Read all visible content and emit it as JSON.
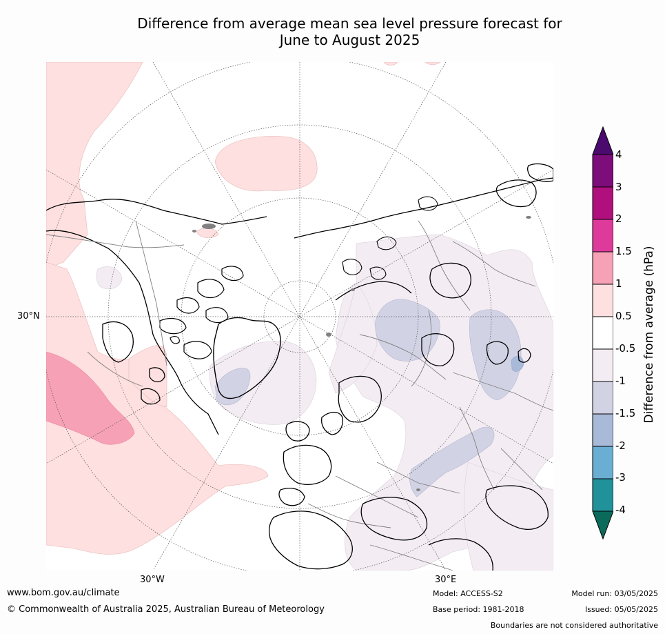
{
  "title_line1": "Difference from average mean sea level pressure forecast for",
  "title_line2": "June to August 2025",
  "map": {
    "longitude_labels": [
      "30°W",
      "30°E"
    ],
    "latitude_labels": [
      "30°N"
    ],
    "colors": {
      "ocean_land_fill": "#ffffff",
      "coastline": "#000000",
      "borders": "#808080",
      "graticule": "#555555"
    }
  },
  "legend": {
    "title": "Difference from average (hPa)",
    "tick_labels": [
      "4",
      "3",
      "2",
      "1.5",
      "1",
      "0.5",
      "-0.5",
      "-1",
      "-1.5",
      "-2",
      "-3",
      "-4"
    ],
    "bins": [
      {
        "range": ">4",
        "color": "#4b0a6e"
      },
      {
        "range": "3 to 4",
        "color": "#7c0d7a"
      },
      {
        "range": "2 to 3",
        "color": "#b0107e"
      },
      {
        "range": "1.5 to 2",
        "color": "#de3a9b"
      },
      {
        "range": "1 to 1.5",
        "color": "#f7a1b6"
      },
      {
        "range": "0.5 to 1",
        "color": "#fde0df"
      },
      {
        "range": "-0.5 to 0.5",
        "color": "#ffffff"
      },
      {
        "range": "-1 to -0.5",
        "color": "#f3edf3"
      },
      {
        "range": "-1.5 to -1",
        "color": "#d2d2e5"
      },
      {
        "range": "-2 to -1.5",
        "color": "#a9b9d8"
      },
      {
        "range": "-3 to -2",
        "color": "#6aaed3"
      },
      {
        "range": "-4 to -3",
        "color": "#22929a"
      },
      {
        "range": "<-4",
        "color": "#0b6b5a"
      }
    ]
  },
  "footer": {
    "website": "www.bom.gov.au/climate",
    "copyright": "© Commonwealth of Australia 2025, Australian Bureau of Meteorology",
    "model": "Model: ACCESS-S2",
    "base_period": "Base period: 1981-2018",
    "model_run": "Model run: 03/05/2025",
    "issued": "Issued: 05/05/2025",
    "disclaimer": "Boundaries are not considered authoritative"
  }
}
